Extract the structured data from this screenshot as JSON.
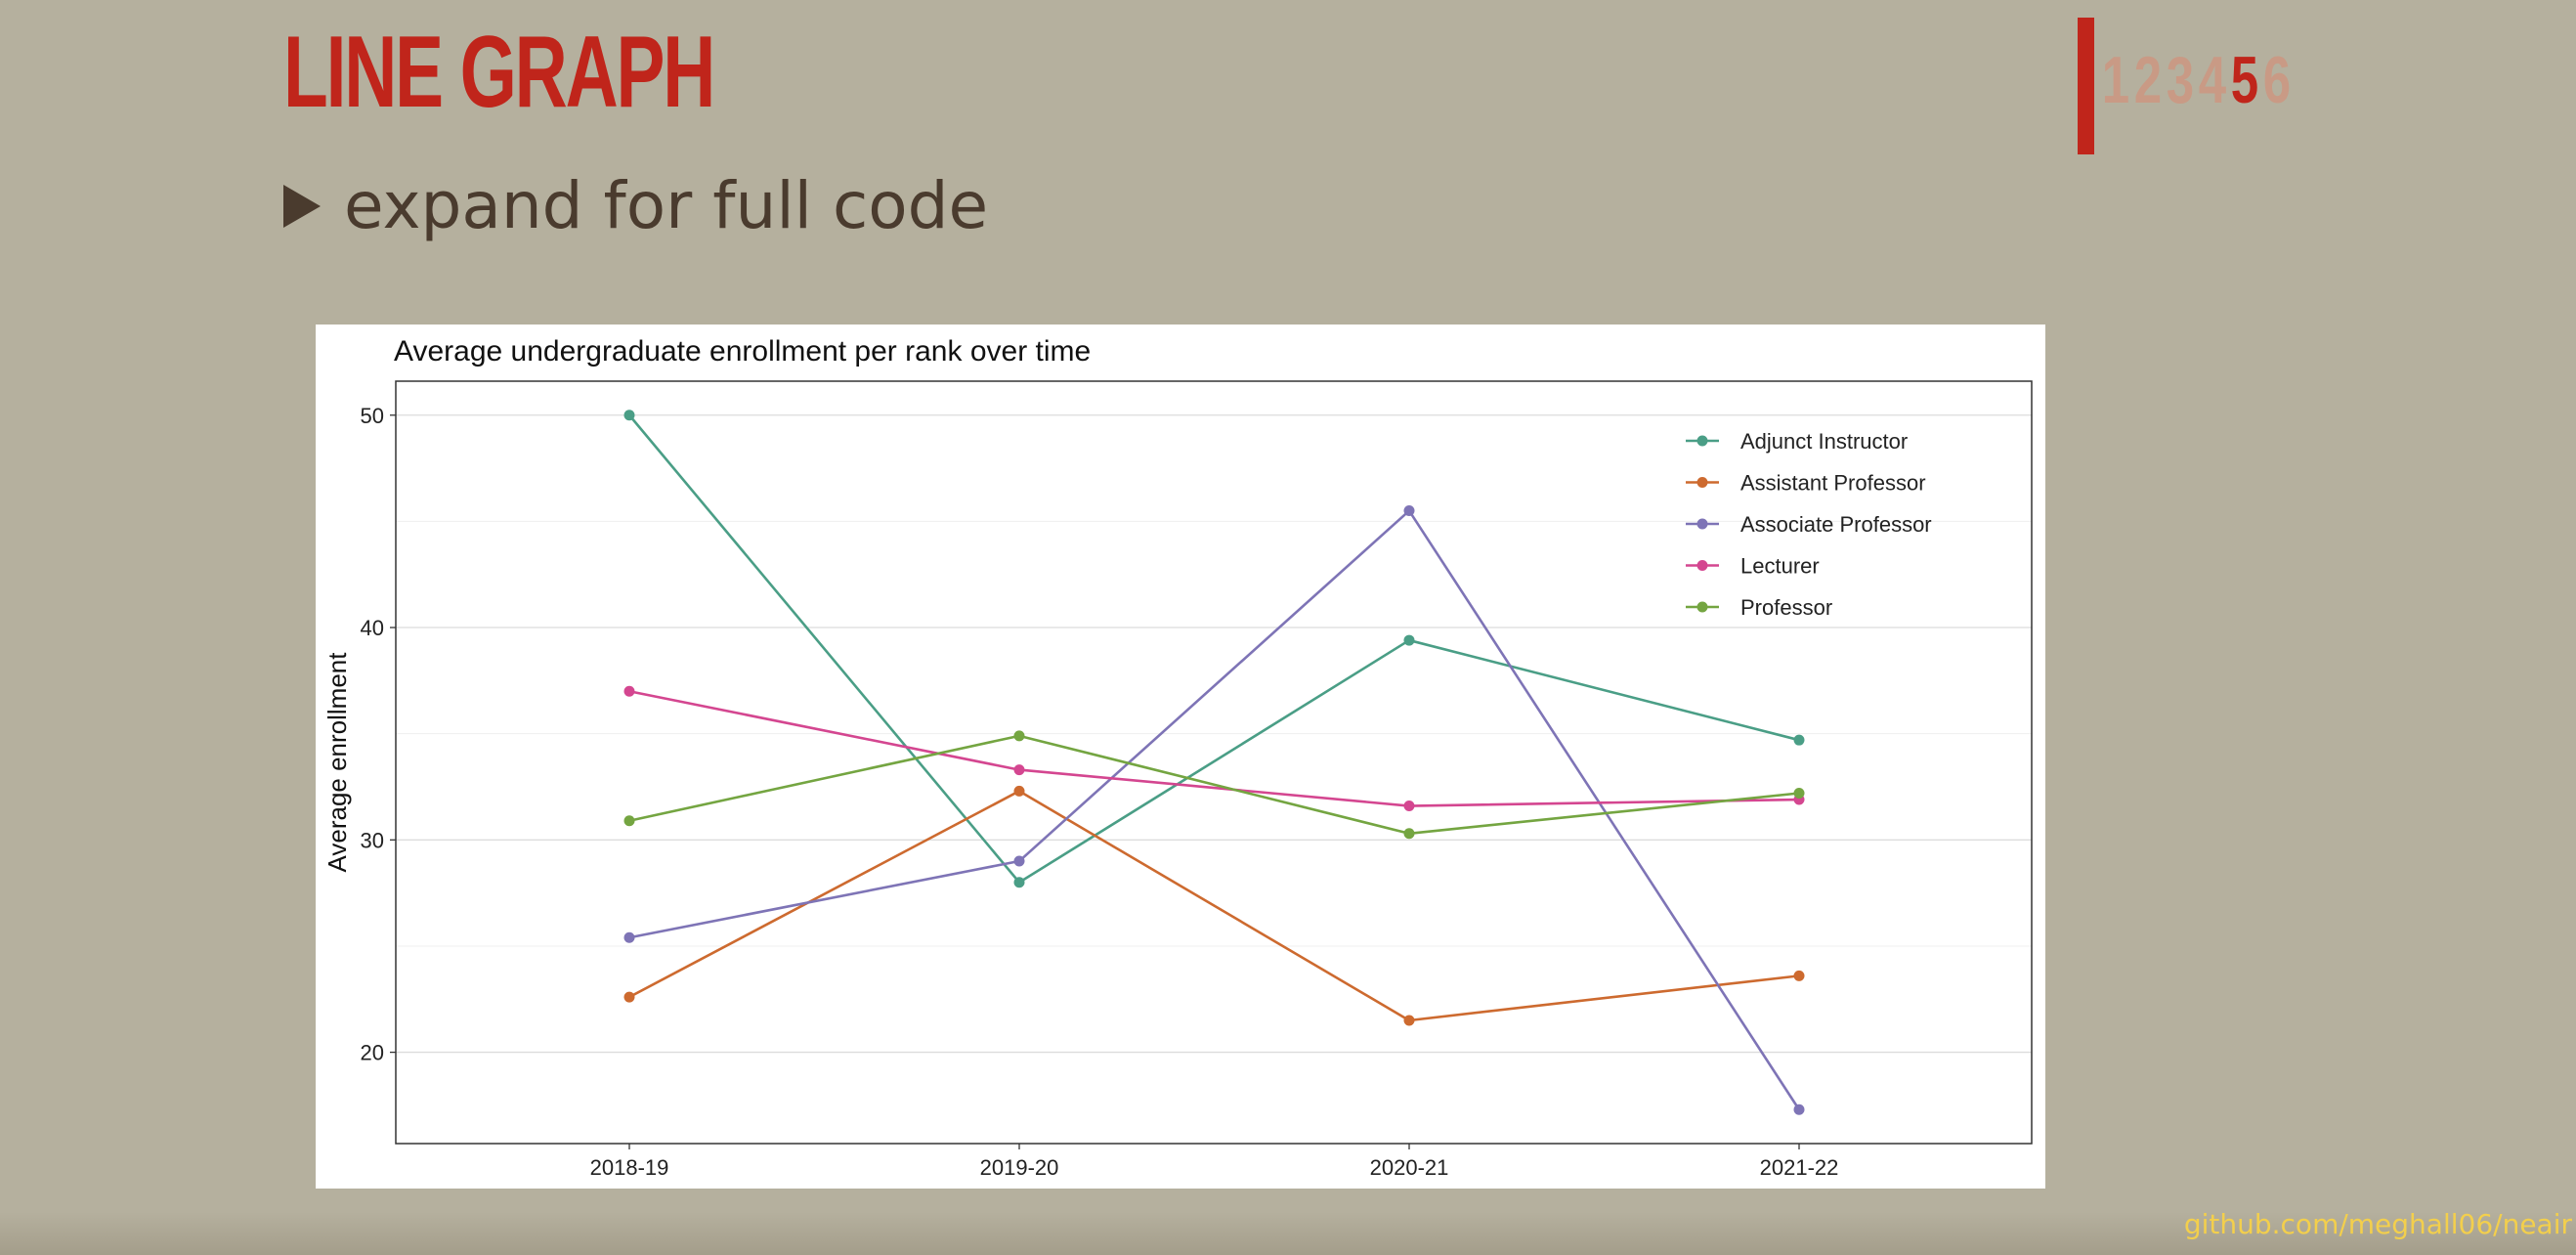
{
  "slide": {
    "title": "LINE GRAPH",
    "expand_label": "expand for full code",
    "footer_link": "github.com/meghall06/neair"
  },
  "nav": {
    "pages": [
      "1",
      "2",
      "3",
      "4",
      "5",
      "6"
    ],
    "current": "5"
  },
  "chart_data": {
    "type": "line",
    "title": "Average undergraduate enrollment per rank over time",
    "xlabel": "",
    "ylabel": "Average enrollment",
    "categories": [
      "2018-19",
      "2019-20",
      "2020-21",
      "2021-22"
    ],
    "ylim": [
      15.7,
      51.6
    ],
    "yticks": [
      20,
      30,
      40,
      50
    ],
    "grid": true,
    "legend": "top-right",
    "series": [
      {
        "name": "Adjunct Instructor",
        "color": "#4a9e86",
        "values": [
          50.0,
          28.0,
          39.4,
          34.7
        ]
      },
      {
        "name": "Assistant Professor",
        "color": "#cd6a2f",
        "values": [
          22.6,
          32.3,
          21.5,
          23.6
        ]
      },
      {
        "name": "Associate Professor",
        "color": "#7e74b6",
        "values": [
          25.4,
          29.0,
          45.5,
          17.3
        ]
      },
      {
        "name": "Lecturer",
        "color": "#d44690",
        "values": [
          37.0,
          33.3,
          31.6,
          31.9
        ]
      },
      {
        "name": "Professor",
        "color": "#74a541",
        "values": [
          30.9,
          34.9,
          30.3,
          32.2
        ]
      }
    ]
  }
}
